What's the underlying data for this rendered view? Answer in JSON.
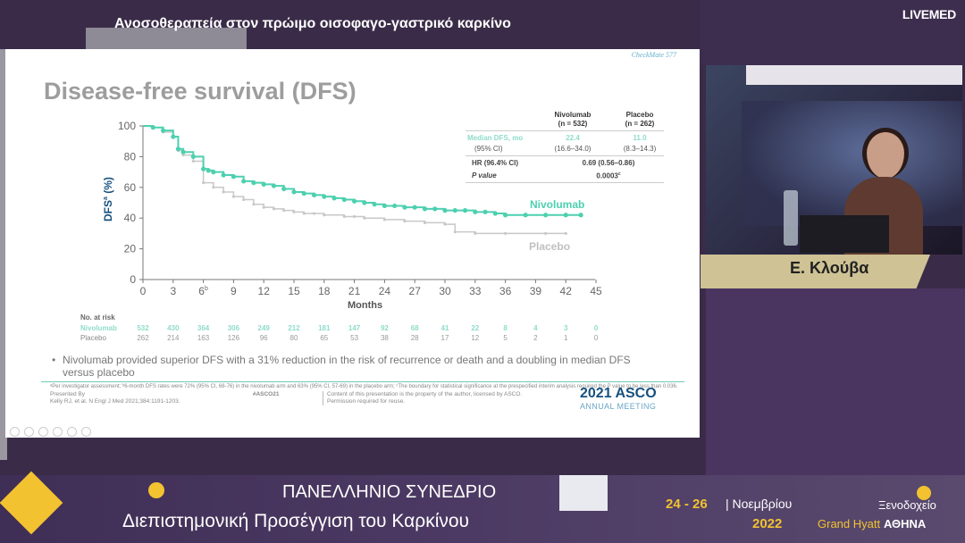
{
  "header": {
    "title": "Ανοσοθεραπεία στον πρώιμο οισοφαγο-γαστρικό καρκίνο",
    "brand": "LIVEMED"
  },
  "slide": {
    "trial_tag": "CheckMate 577",
    "title": "Disease-free survival (DFS)",
    "y_label": "DFS",
    "y_label_sup": "a",
    "y_label_unit": "(%)",
    "x_label": "Months",
    "y_ticks": [
      "100",
      "80",
      "60",
      "40",
      "20",
      "0"
    ],
    "x_ticks": [
      "0",
      "3",
      "6",
      "9",
      "12",
      "15",
      "18",
      "21",
      "24",
      "27",
      "30",
      "33",
      "36",
      "39",
      "42",
      "45"
    ],
    "x_tick_6_sup": "b",
    "series_labels": {
      "nivolumab": "Nivolumab",
      "placebo": "Placebo"
    },
    "table": {
      "col1": "Nivolumab",
      "col1_n": "(n = 532)",
      "col2": "Placebo",
      "col2_n": "(n = 262)",
      "r1_label": "Median DFS, mo",
      "r1_c1": "22.4",
      "r1_c2": "11.0",
      "r2_label": "(95% CI)",
      "r2_c1": "(16.6–34.0)",
      "r2_c2": "(8.3–14.3)",
      "r3_label": "HR (96.4% CI)",
      "r3_val": "0.69 (0.56–0.86)",
      "r4_label": "P value",
      "r4_val": "0.0003",
      "r4_sup": "c"
    },
    "risk": {
      "header": "No. at risk",
      "niv_label": "Nivolumab",
      "pla_label": "Placebo",
      "nivolumab": [
        "532",
        "430",
        "364",
        "306",
        "249",
        "212",
        "181",
        "147",
        "92",
        "68",
        "41",
        "22",
        "8",
        "4",
        "3",
        "0"
      ],
      "placebo": [
        "262",
        "214",
        "163",
        "126",
        "96",
        "80",
        "65",
        "53",
        "38",
        "28",
        "17",
        "12",
        "5",
        "2",
        "1",
        "0"
      ]
    },
    "bullet": "Nivolumab provided superior DFS with a 31% reduction in the risk of recurrence or death and a doubling in median DFS versus placebo",
    "footnote": "ᵃPer investigator assessment; ᵇ6-month DFS rates were 72% (95% CI, 68-76) in the nivolumab arm and 63% (95% CI, 57-69) in the placebo arm; ᶜThe boundary for statistical significance at the prespecified interim analysis required the P value to be less than 0.036.",
    "ref1": "Presented By",
    "ref2": "Kelly RJ, et al. N Engl J Med 2021;384:1191-1203.",
    "hashtag": "#ASCO21",
    "copy1": "Content of this presentation is the property of the author, licensed by ASCO.",
    "copy2": "Permission required for reuse.",
    "asco_year": "2021 ASCO",
    "asco_meeting": "ANNUAL MEETING"
  },
  "speaker": {
    "name": "Ε. Κλούβα"
  },
  "footer": {
    "conf_line1": "ΠΑΝΕΛΛΗΝΙΟ ΣΥΝΕΔΡΙΟ",
    "conf_line2": "Διεπιστημονική Προσέγγιση του Καρκίνου",
    "dates": "24 - 26",
    "month": "| Νοεμβρίου",
    "year": "2022",
    "venue1": "Ξενοδοχείο",
    "venue2": "Grand Hyatt",
    "venue3": "ΑΘΗΝΑ"
  },
  "chart_data": {
    "type": "line",
    "title": "Disease-free survival (DFS)",
    "xlabel": "Months",
    "ylabel": "DFS (%)",
    "xlim": [
      0,
      45
    ],
    "ylim": [
      0,
      100
    ],
    "series": [
      {
        "name": "Nivolumab",
        "color": "#4dd0b0",
        "x": [
          0,
          1,
          2,
          3,
          3.5,
          4,
          5,
          6,
          6.5,
          7,
          8,
          9,
          10,
          11,
          12,
          13,
          14,
          15,
          16,
          17,
          18,
          19,
          20,
          21,
          22,
          23,
          24,
          25,
          26,
          27,
          28,
          29,
          30,
          31,
          32,
          33,
          34,
          35,
          36,
          38,
          40,
          42,
          43.5
        ],
        "y": [
          100,
          99,
          97,
          93,
          85,
          83,
          80,
          72,
          71,
          70,
          68,
          67,
          64,
          63,
          62,
          61,
          59,
          57,
          56,
          55,
          54,
          53,
          52,
          51,
          50,
          49,
          48,
          48,
          47,
          47,
          46,
          46,
          45,
          45,
          45,
          44,
          44,
          43,
          42,
          42,
          42,
          42,
          42
        ]
      },
      {
        "name": "Placebo",
        "color": "#c8c8c8",
        "x": [
          0,
          1,
          2,
          3,
          3.5,
          4,
          5,
          6,
          7,
          8,
          9,
          10,
          11,
          12,
          13,
          14,
          15,
          16,
          17,
          18,
          20,
          21,
          22,
          24,
          26,
          28,
          30,
          31,
          33,
          36,
          40,
          42
        ],
        "y": [
          100,
          99,
          96,
          93,
          84,
          81,
          77,
          63,
          60,
          57,
          54,
          52,
          49,
          47,
          46,
          45,
          44,
          43,
          43,
          42,
          41,
          41,
          40,
          39,
          38,
          37,
          36,
          31,
          30,
          30,
          30,
          30
        ]
      }
    ]
  }
}
